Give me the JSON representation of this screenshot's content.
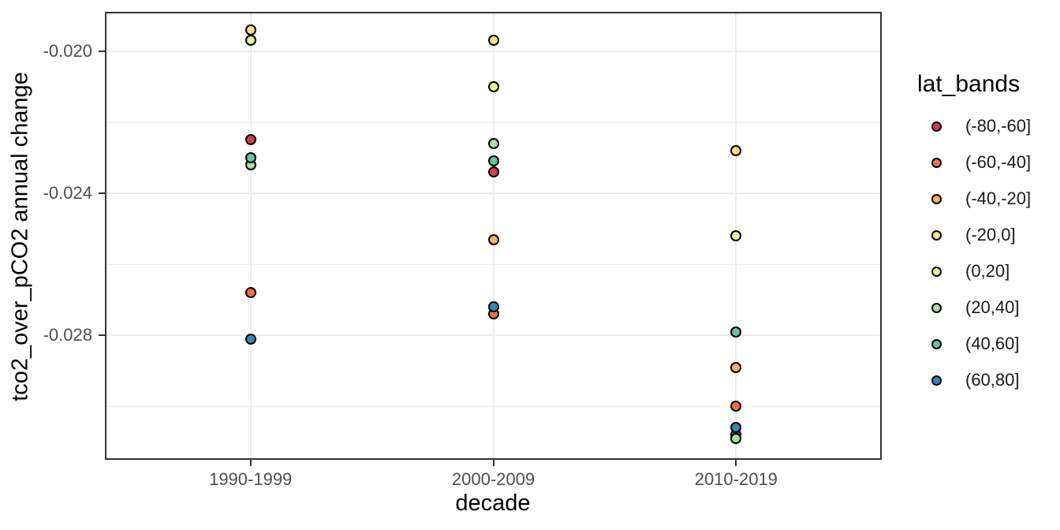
{
  "colors": {
    "background": "#ffffff",
    "panel_border": "#333333",
    "grid_major": "#ebebeb",
    "grid_minor": "#ededed",
    "tick_mark": "#333333",
    "tick_label": "#4d4d4d",
    "axis_title": "#000000",
    "point_stroke": "#000000",
    "legend_text": "#1a1a1a"
  },
  "chart_data": {
    "type": "scatter",
    "title": "",
    "xlabel": "decade",
    "ylabel": "tco2_over_pCO2 annual change",
    "legend_title": "lat_bands",
    "legend_position": "right",
    "grid": true,
    "categories": [
      "1990-1999",
      "2000-2009",
      "2010-2019"
    ],
    "ylim": [
      -0.0315,
      -0.0189
    ],
    "y_ticks": [
      {
        "value": -0.02,
        "label": "-0.020"
      },
      {
        "value": -0.024,
        "label": "-0.024"
      },
      {
        "value": -0.028,
        "label": "-0.028"
      }
    ],
    "y_minor_ticks": [
      -0.022,
      -0.026,
      -0.03
    ],
    "series": [
      {
        "name": "(-80,-60]",
        "color": "#d53e4f",
        "values": [
          -0.0225,
          -0.0234,
          -0.0308
        ]
      },
      {
        "name": "(-60,-40]",
        "color": "#f46d43",
        "values": [
          -0.0268,
          -0.0274,
          -0.03
        ]
      },
      {
        "name": "(-40,-20]",
        "color": "#fdae61",
        "values": [
          null,
          -0.0253,
          -0.0289
        ]
      },
      {
        "name": "(-20,0]",
        "color": "#fee08b",
        "values": [
          -0.0194,
          -0.0197,
          -0.0228
        ]
      },
      {
        "name": "(0,20]",
        "color": "#e6f598",
        "values": [
          -0.0197,
          -0.021,
          -0.0252
        ]
      },
      {
        "name": "(20,40]",
        "color": "#abdda4",
        "values": [
          -0.0232,
          -0.0226,
          -0.0309
        ]
      },
      {
        "name": "(40,60]",
        "color": "#66c2a5",
        "values": [
          -0.023,
          -0.0231,
          -0.0279
        ]
      },
      {
        "name": "(60,80]",
        "color": "#3288bd",
        "values": [
          -0.0281,
          -0.0272,
          -0.0306
        ]
      }
    ]
  }
}
